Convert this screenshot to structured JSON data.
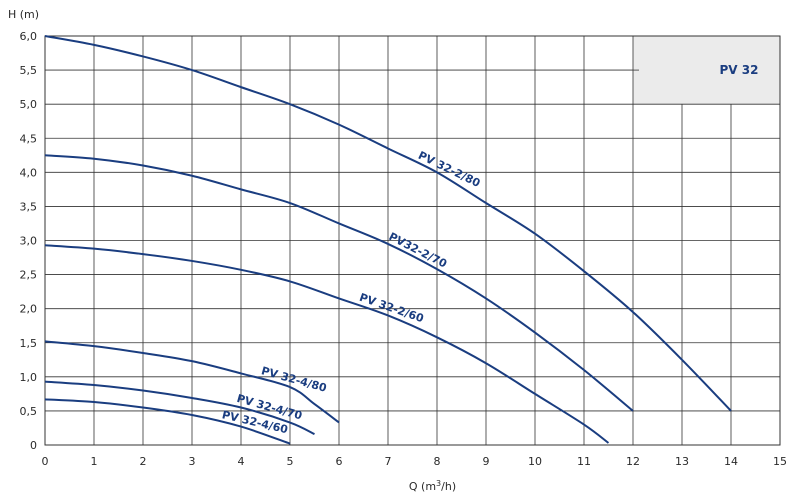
{
  "chart_data": {
    "type": "line",
    "title": "PV 32",
    "xlabel_prefix": "Q (m",
    "xlabel_sup": "3",
    "xlabel_suffix": "/h)",
    "ylabel": "H (m)",
    "xlim": [
      0,
      15
    ],
    "ylim": [
      0,
      6
    ],
    "grid": true,
    "x_ticks": [
      "0",
      "1",
      "2",
      "3",
      "4",
      "5",
      "6",
      "7",
      "8",
      "9",
      "10",
      "11",
      "12",
      "13",
      "14",
      "15"
    ],
    "y_ticks": [
      "0",
      "0,5",
      "1,0",
      "1,5",
      "2,0",
      "2,5",
      "3,0",
      "3,5",
      "4,0",
      "4,5",
      "5,0",
      "5,5",
      "6,0"
    ],
    "colors": {
      "curve": "#1a3d80",
      "grid": "#333333",
      "panel": "#ebebeb"
    },
    "series": [
      {
        "name": "PV 32-2/80",
        "points": [
          [
            0,
            6.0
          ],
          [
            1,
            5.87
          ],
          [
            2,
            5.7
          ],
          [
            3,
            5.5
          ],
          [
            4,
            5.25
          ],
          [
            5,
            5.0
          ],
          [
            6,
            4.7
          ],
          [
            7,
            4.35
          ],
          [
            8,
            4.0
          ],
          [
            9,
            3.55
          ],
          [
            10,
            3.1
          ],
          [
            11,
            2.55
          ],
          [
            12,
            1.95
          ],
          [
            13,
            1.25
          ],
          [
            14,
            0.5
          ]
        ]
      },
      {
        "name": "PV32-2/70",
        "points": [
          [
            0,
            4.25
          ],
          [
            1,
            4.2
          ],
          [
            2,
            4.1
          ],
          [
            3,
            3.95
          ],
          [
            4,
            3.75
          ],
          [
            5,
            3.55
          ],
          [
            6,
            3.25
          ],
          [
            7,
            2.95
          ],
          [
            8,
            2.58
          ],
          [
            9,
            2.15
          ],
          [
            10,
            1.65
          ],
          [
            11,
            1.1
          ],
          [
            12,
            0.5
          ]
        ]
      },
      {
        "name": "PV 32-2/60",
        "points": [
          [
            0,
            2.93
          ],
          [
            1,
            2.88
          ],
          [
            2,
            2.8
          ],
          [
            3,
            2.7
          ],
          [
            4,
            2.57
          ],
          [
            5,
            2.4
          ],
          [
            6,
            2.15
          ],
          [
            7,
            1.9
          ],
          [
            8,
            1.58
          ],
          [
            9,
            1.2
          ],
          [
            10,
            0.75
          ],
          [
            11,
            0.3
          ],
          [
            11.5,
            0.03
          ]
        ]
      },
      {
        "name": "PV 32-4/80",
        "points": [
          [
            0,
            1.52
          ],
          [
            1,
            1.45
          ],
          [
            2,
            1.35
          ],
          [
            3,
            1.23
          ],
          [
            4,
            1.05
          ],
          [
            5,
            0.85
          ],
          [
            5.5,
            0.6
          ],
          [
            6,
            0.33
          ]
        ]
      },
      {
        "name": "PV 32-4/70",
        "points": [
          [
            0,
            0.93
          ],
          [
            1,
            0.88
          ],
          [
            2,
            0.8
          ],
          [
            3,
            0.69
          ],
          [
            4,
            0.55
          ],
          [
            5,
            0.33
          ],
          [
            5.5,
            0.16
          ]
        ]
      },
      {
        "name": "PV 32-4/60",
        "points": [
          [
            0,
            0.67
          ],
          [
            1,
            0.63
          ],
          [
            2,
            0.55
          ],
          [
            3,
            0.44
          ],
          [
            4,
            0.27
          ],
          [
            5,
            0.02
          ]
        ]
      }
    ]
  }
}
